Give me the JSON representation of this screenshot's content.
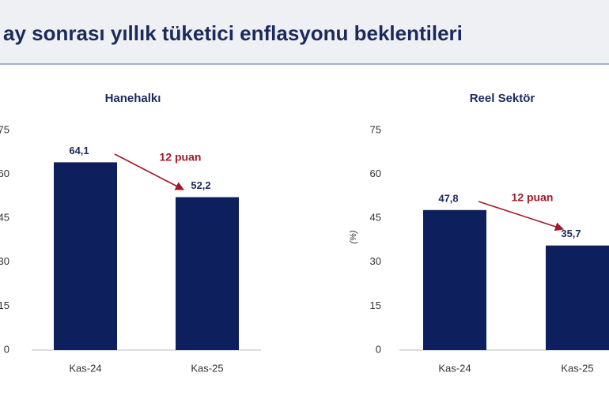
{
  "header": {
    "title": "ay sonrası yıllık tüketici enflasyonu beklentileri"
  },
  "chart_data": [
    {
      "type": "bar",
      "title": "Hanehalkı",
      "categories": [
        "Kas-24",
        "Kas-25"
      ],
      "values": [
        64.1,
        52.2
      ],
      "value_labels": [
        "64,1",
        "52,2"
      ],
      "color": "#0d1f5c",
      "ylim": [
        0,
        75
      ],
      "yticks": [
        0,
        15,
        30,
        45,
        60,
        75
      ],
      "annotation": "12 puan",
      "annotation_color": "#a3192a"
    },
    {
      "type": "bar",
      "title": "Reel Sektör",
      "y_label": "(%)",
      "categories": [
        "Kas-24",
        "Kas-25"
      ],
      "values": [
        47.8,
        35.7
      ],
      "value_labels": [
        "47,8",
        "35,7"
      ],
      "color": "#0d1f5c",
      "ylim": [
        0,
        75
      ],
      "yticks": [
        0,
        15,
        30,
        45,
        60,
        75
      ],
      "annotation": "12 puan",
      "annotation_color": "#a3192a"
    }
  ]
}
